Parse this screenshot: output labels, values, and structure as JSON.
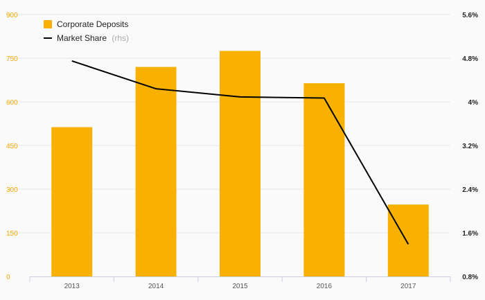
{
  "chart_data": {
    "type": "bar",
    "categories": [
      "2013",
      "2014",
      "2015",
      "2016",
      "2017"
    ],
    "series": [
      {
        "name": "Corporate Deposits",
        "type": "bar",
        "axis": "left",
        "color": "#f8b100",
        "values": [
          513,
          720,
          775,
          664,
          247
        ]
      },
      {
        "name": "Market Share",
        "name_suffix": "(rhs)",
        "type": "line",
        "axis": "right",
        "color": "#000000",
        "values": [
          4.75,
          4.24,
          4.09,
          4.07,
          1.39
        ]
      }
    ],
    "left_axis": {
      "ylim": [
        0,
        900
      ],
      "ticks": [
        "900",
        "750",
        "600",
        "450",
        "300",
        "150",
        "0"
      ],
      "tick_values": [
        900,
        750,
        600,
        450,
        300,
        150,
        0
      ]
    },
    "right_axis": {
      "ylim": [
        0.8,
        5.6
      ],
      "ticks": [
        "5.6%",
        "4.8%",
        "4%",
        "3.2%",
        "2.4%",
        "1.6%",
        "0.8%"
      ],
      "tick_values": [
        5.6,
        4.8,
        4.0,
        3.2,
        2.4,
        1.6,
        0.8
      ]
    },
    "grid": true,
    "legend_position": "top-left",
    "colors": {
      "left_axis_text": "#f5a800",
      "gridline": "#e6e6e6",
      "x_axis": "#c8d0e0"
    }
  }
}
